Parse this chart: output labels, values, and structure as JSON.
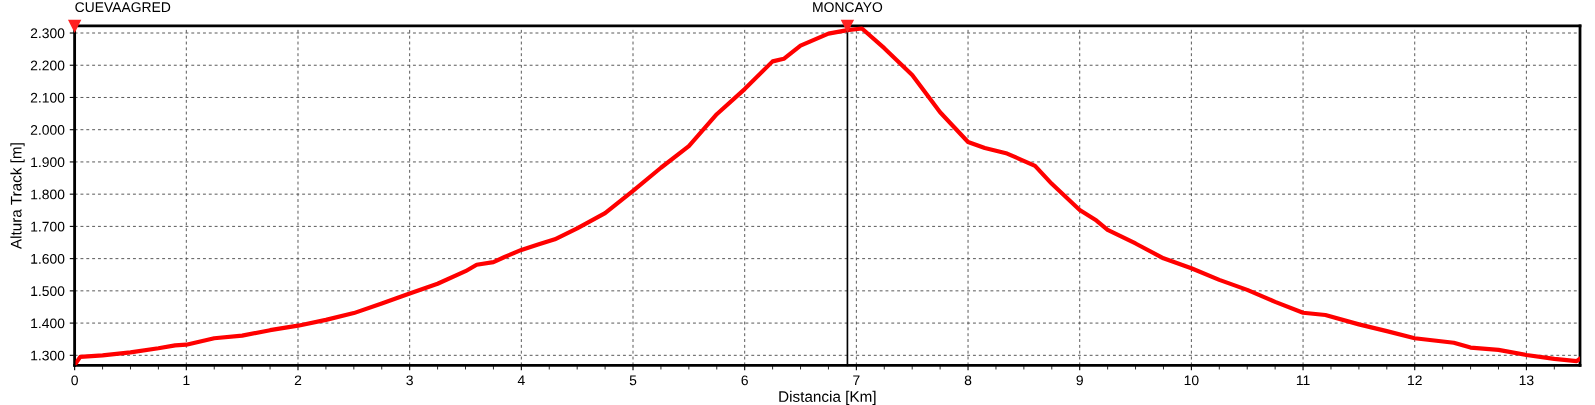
{
  "chart_data": {
    "type": "line",
    "xlabel": "Distancia [Km]",
    "ylabel": "Altura Track [m]",
    "x": [
      0,
      0.05,
      0.25,
      0.5,
      0.75,
      0.9,
      1.0,
      1.25,
      1.5,
      1.75,
      2.0,
      2.25,
      2.5,
      2.75,
      3.0,
      3.25,
      3.5,
      3.6,
      3.75,
      3.85,
      4.0,
      4.15,
      4.3,
      4.5,
      4.75,
      5.0,
      5.25,
      5.5,
      5.75,
      6.0,
      6.25,
      6.35,
      6.5,
      6.75,
      6.92,
      7.05,
      7.25,
      7.5,
      7.75,
      8.0,
      8.15,
      8.35,
      8.6,
      8.75,
      9.0,
      9.15,
      9.25,
      9.5,
      9.75,
      10.0,
      10.25,
      10.5,
      10.75,
      11.0,
      11.2,
      11.5,
      11.75,
      12.0,
      12.35,
      12.5,
      12.75,
      13.0,
      13.25,
      13.45,
      13.48
    ],
    "series": [
      {
        "color": "#ff0000",
        "values": [
          1270,
          1295,
          1300,
          1309,
          1322,
          1331,
          1333,
          1353,
          1361,
          1378,
          1392,
          1410,
          1431,
          1461,
          1492,
          1522,
          1561,
          1581,
          1589,
          1605,
          1627,
          1644,
          1660,
          1694,
          1741,
          1810,
          1882,
          1949,
          2048,
          2126,
          2212,
          2220,
          2261,
          2298,
          2309,
          2314,
          2253,
          2170,
          2054,
          1962,
          1943,
          1926,
          1888,
          1832,
          1751,
          1718,
          1689,
          1647,
          1601,
          1570,
          1534,
          1503,
          1466,
          1432,
          1425,
          1396,
          1375,
          1353,
          1339,
          1324,
          1317,
          1301,
          1289,
          1282,
          1290
        ]
      }
    ],
    "xlim": [
      0,
      13.48
    ],
    "xticks": [
      0,
      1,
      2,
      3,
      4,
      5,
      6,
      7,
      8,
      9,
      10,
      11,
      12,
      13
    ],
    "ylim": [
      1269,
      2322
    ],
    "yticks": [
      {
        "value": 1300,
        "label": "1.300"
      },
      {
        "value": 1400,
        "label": "1.400"
      },
      {
        "value": 1500,
        "label": "1.500"
      },
      {
        "value": 1600,
        "label": "1.600"
      },
      {
        "value": 1700,
        "label": "1.700"
      },
      {
        "value": 1800,
        "label": "1.800"
      },
      {
        "value": 1900,
        "label": "1.900"
      },
      {
        "value": 2000,
        "label": "2.000"
      },
      {
        "value": 2100,
        "label": "2.100"
      },
      {
        "value": 2200,
        "label": "2.200"
      },
      {
        "value": 2300,
        "label": "2.300"
      }
    ],
    "ref_lines": [
      {
        "axis": "x",
        "value": 0,
        "label": "CUEVAAGRED",
        "color": "#000000"
      },
      {
        "axis": "x",
        "value": 6.92,
        "label": "MONCAYO",
        "color": "#000000"
      }
    ],
    "grid": true,
    "line_style": "solid",
    "marker": "none",
    "legend": false
  }
}
